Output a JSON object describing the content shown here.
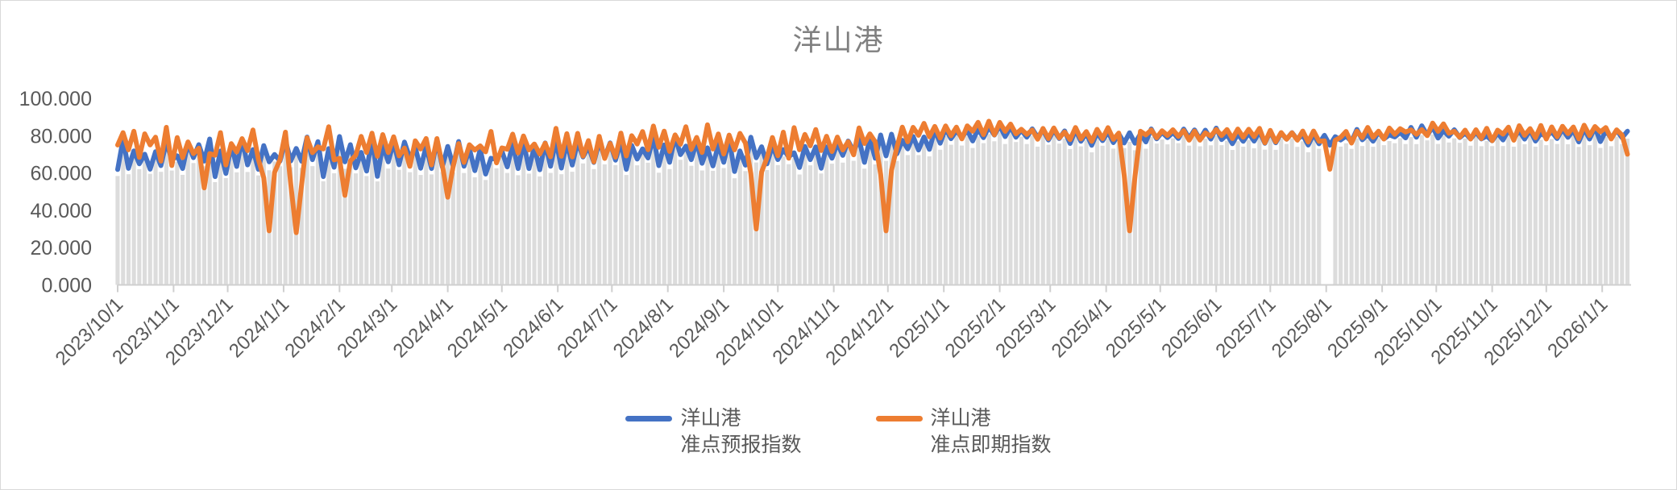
{
  "chart": {
    "title": "洋山港",
    "title_color": "#808080",
    "legend": [
      {
        "label_line1": "洋山港",
        "label_line2": "准点预报指数",
        "color": "#4472C4"
      },
      {
        "label_line1": "洋山港",
        "label_line2": "准点即期指数",
        "color": "#ED7D31"
      }
    ]
  },
  "chart_data": {
    "type": "line",
    "title": "洋山港",
    "ylabel": "",
    "xlabel": "",
    "ylim": [
      0,
      100
    ],
    "y_tick_labels": [
      "100.000",
      "80.000",
      "60.000",
      "40.000",
      "20.000",
      "0.000"
    ],
    "y_tick_values": [
      100,
      80,
      60,
      40,
      20,
      0
    ],
    "x_tick_labels": [
      "2023/10/1",
      "2023/11/1",
      "2023/12/1",
      "2024/1/1",
      "2024/2/1",
      "2024/3/1",
      "2024/4/1",
      "2024/5/1",
      "2024/6/1",
      "2024/7/1",
      "2024/8/1",
      "2024/9/1",
      "2024/10/1",
      "2024/11/1",
      "2024/12/1",
      "2025/1/1",
      "2025/2/1",
      "2025/3/1",
      "2025/4/1",
      "2025/5/1",
      "2025/6/1",
      "2025/7/1",
      "2025/8/1",
      "2025/9/1",
      "2025/10/1",
      "2025/11/1",
      "2025/12/1",
      "2026/1/1"
    ],
    "x_start": "2023/10/1",
    "x_end": "2026/1/17",
    "sample_interval_days": 3,
    "grid": "off",
    "legend_position": "bottom-center",
    "series": [
      {
        "name": "洋山港准点预报指数",
        "type": "line",
        "color": "#4472C4",
        "monthly_mean": [
          69,
          68,
          69,
          69,
          69,
          68,
          67,
          68,
          69,
          70,
          70,
          70,
          70,
          72,
          75,
          80,
          82,
          80,
          79,
          80,
          80,
          79,
          78,
          80,
          81,
          79,
          80,
          81
        ],
        "monthly_amplitude": [
          10,
          10,
          10,
          10,
          10,
          10,
          10,
          10,
          9,
          9,
          9,
          9,
          9,
          8,
          7,
          5,
          4,
          4,
          4,
          4,
          4,
          4,
          4,
          4,
          4,
          4,
          4,
          4
        ],
        "dips": []
      },
      {
        "name": "洋山港准点即期指数",
        "type": "line",
        "color": "#ED7D31",
        "monthly_mean": [
          76,
          74,
          75,
          74,
          74,
          74,
          73,
          74,
          75,
          76,
          76,
          76,
          75,
          76,
          78,
          82,
          84,
          81,
          80,
          81,
          81,
          80,
          79,
          81,
          83,
          81,
          82,
          82
        ],
        "monthly_amplitude": [
          9,
          10,
          10,
          10,
          10,
          10,
          10,
          10,
          9,
          9,
          9,
          9,
          9,
          8,
          7,
          5,
          4,
          4,
          4,
          4,
          4,
          4,
          5,
          4,
          4,
          4,
          4,
          4
        ],
        "dips": [
          [
            "2023/11/17",
            52
          ],
          [
            "2023/12/24",
            29
          ],
          [
            "2024/1/7",
            28
          ],
          [
            "2024/2/5",
            48
          ],
          [
            "2024/4/1",
            47
          ],
          [
            "2024/9/19",
            30
          ],
          [
            "2024/11/29",
            29
          ],
          [
            "2025/4/13",
            29
          ],
          [
            "2025/8/3",
            62
          ],
          [
            "2026/1/16",
            70
          ]
        ]
      }
    ],
    "background_bars": {
      "color": "#DCDCDC",
      "description": "dense light-gray columns, one per sample, tops tracking just below the lower line envelope",
      "offset_below_lines": 2.5,
      "gap_dates": [
        "2025/8/1"
      ]
    },
    "axis_color": "#CFCFCF",
    "tick_label_color": "#595959",
    "seed": 7
  }
}
